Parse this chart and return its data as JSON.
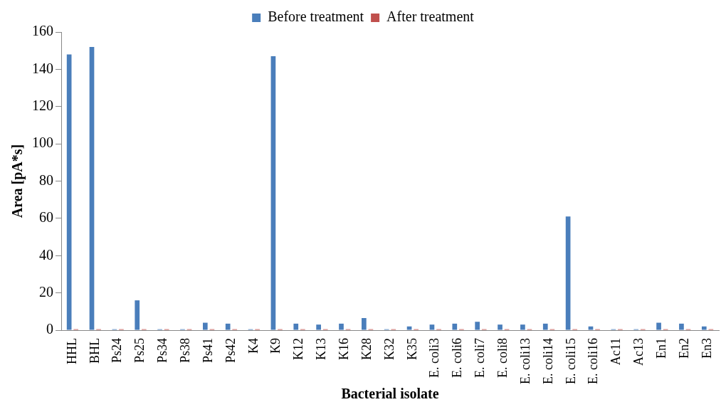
{
  "chart_data": {
    "type": "bar",
    "xlabel": "Bacterial isolate",
    "ylabel": "Area [pA*s]",
    "categories": [
      "HHL",
      "BHL",
      "Ps24",
      "Ps25",
      "Ps34",
      "Ps38",
      "Ps41",
      "Ps42",
      "K4",
      "K9",
      "K12",
      "K13",
      "K16",
      "K28",
      "K32",
      "K35",
      "E. coli3",
      "E. coli6",
      "E. coli7",
      "E. coli8",
      "E. coli13",
      "E. coli14",
      "E. coli15",
      "E. coli16",
      "Ac11",
      "Ac13",
      "En1",
      "En2",
      "En3"
    ],
    "series": [
      {
        "name": "Before treatment",
        "color": "#4a7ebb",
        "values": [
          148,
          152,
          0.5,
          16,
          0.5,
          0.5,
          4,
          3.5,
          0.5,
          147,
          3.5,
          3,
          3.5,
          6.5,
          0.5,
          2,
          3,
          3.5,
          4.5,
          3,
          3,
          3.5,
          61,
          2,
          0.5,
          0.5,
          4,
          3.5,
          2
        ]
      },
      {
        "name": "After treatment",
        "color": "#c0504d",
        "values": [
          0.5,
          0.5,
          0.5,
          0.5,
          0.5,
          0.5,
          0.5,
          0.5,
          0.5,
          0.5,
          0.5,
          0.5,
          0.5,
          0.5,
          0.5,
          0.5,
          0.5,
          0.5,
          0.5,
          0.5,
          0.5,
          0.5,
          0.5,
          0.5,
          0.5,
          0.5,
          0.5,
          0.5,
          0.5
        ]
      }
    ],
    "ylim": [
      0,
      160
    ],
    "yticks": [
      0,
      20,
      40,
      60,
      80,
      100,
      120,
      140,
      160
    ],
    "grid": false,
    "legend": "top"
  }
}
